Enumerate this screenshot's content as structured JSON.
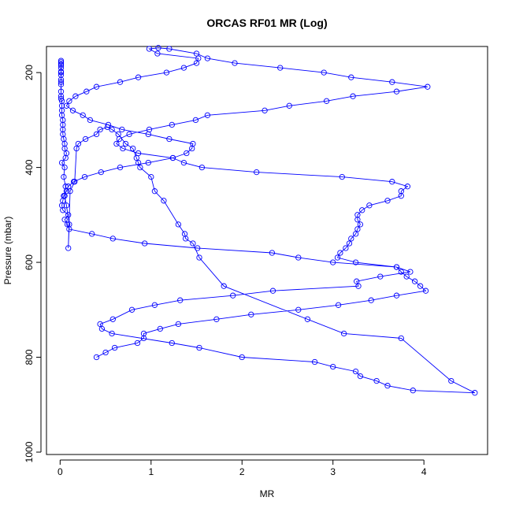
{
  "chart_data": {
    "type": "line",
    "title": "ORCAS RF01 MR (Log)",
    "xlabel": "MR",
    "ylabel": "Pressure (mbar)",
    "xlim": [
      -0.15,
      4.7
    ],
    "ylim": [
      1005,
      145
    ],
    "y_reversed": true,
    "grid": false,
    "legend": "none",
    "xticks": [
      0,
      1,
      2,
      3,
      4
    ],
    "xtick_labels": [
      "0",
      "1",
      "2",
      "3",
      "4"
    ],
    "yticks": [
      200,
      400,
      600,
      800,
      1000
    ],
    "ytick_labels": [
      "200",
      "400",
      "600",
      "800",
      "1000"
    ],
    "color": "#0000ff",
    "series": [
      {
        "marker": "circle-open",
        "x": [
          0.01,
          0.01,
          0.01,
          0.01,
          0.01,
          0.01,
          0.01,
          0.01,
          0.01,
          0.01,
          0.01,
          0.01,
          0.01,
          0.01,
          0.02,
          0.02,
          0.02,
          0.02,
          0.03,
          0.03,
          0.03,
          0.03,
          0.04,
          0.05,
          0.05,
          0.07,
          0.06,
          0.02,
          0.05,
          0.04,
          0.06,
          0.05,
          0.07,
          0.1,
          0.09,
          0.11,
          0.16,
          0.18,
          0.2,
          0.28,
          0.4,
          0.44,
          0.52,
          0.57,
          0.64,
          0.72,
          0.8,
          0.84,
          0.86,
          0.88,
          1.0,
          1.04,
          1.14,
          1.3,
          1.37,
          1.38,
          1.46,
          1.53,
          1.8,
          2.72,
          3.12,
          3.75,
          4.3,
          4.56,
          3.88,
          3.6,
          3.48,
          3.3,
          3.25,
          3.0,
          2.8,
          2.0,
          1.53,
          1.23,
          0.57,
          0.46,
          0.44,
          0.58,
          0.79,
          1.04,
          1.32,
          1.9,
          2.34,
          3.28,
          3.26,
          3.52,
          3.85,
          3.7,
          3.0,
          2.62,
          2.33,
          1.51,
          0.93,
          0.58,
          0.35,
          0.1,
          0.08,
          0.05,
          0.09,
          0.03,
          0.02,
          0.03,
          0.04,
          0.07,
          0.09,
          0.15,
          0.27,
          0.45,
          0.66,
          0.97,
          1.24,
          1.39,
          1.45,
          1.46,
          1.2,
          0.97,
          0.68,
          0.53,
          0.33,
          0.25,
          0.14,
          0.07,
          0.1,
          0.17,
          0.29,
          0.4,
          0.66,
          0.86,
          1.17,
          1.36,
          1.5,
          1.52,
          1.07,
          0.98,
          1.08,
          1.2,
          1.5,
          1.62,
          1.92,
          2.42,
          2.9,
          3.2,
          3.65,
          4.04,
          3.7,
          3.22,
          2.93,
          2.52,
          2.25,
          1.62,
          1.49,
          1.23,
          0.98,
          0.76,
          0.65,
          0.62,
          0.69,
          0.86,
          1.24,
          1.36,
          1.56,
          2.16,
          3.1,
          3.65,
          3.82,
          3.75,
          3.75,
          3.6,
          3.4,
          3.32,
          3.27,
          3.27,
          3.3,
          3.27,
          3.25,
          3.2,
          3.18,
          3.14,
          3.08,
          3.05,
          3.25,
          3.7,
          3.75,
          3.81,
          3.9,
          3.96,
          4.02,
          3.7,
          3.42,
          3.06,
          2.62,
          2.1,
          1.72,
          1.3,
          1.1,
          0.92,
          0.92,
          0.85,
          0.6,
          0.5,
          0.4
        ],
        "y": [
          175,
          178,
          182,
          185,
          190,
          198,
          200,
          205,
          215,
          220,
          225,
          240,
          250,
          255,
          260,
          270,
          280,
          290,
          300,
          310,
          320,
          330,
          340,
          350,
          360,
          370,
          380,
          390,
          400,
          420,
          440,
          460,
          480,
          520,
          570,
          450,
          430,
          360,
          350,
          340,
          330,
          320,
          315,
          320,
          330,
          350,
          360,
          380,
          390,
          400,
          420,
          450,
          470,
          520,
          540,
          550,
          560,
          590,
          650,
          720,
          750,
          760,
          850,
          875,
          870,
          860,
          850,
          840,
          830,
          820,
          810,
          800,
          780,
          770,
          750,
          740,
          730,
          720,
          700,
          690,
          680,
          670,
          660,
          650,
          640,
          630,
          620,
          610,
          600,
          590,
          580,
          570,
          560,
          550,
          540,
          530,
          520,
          510,
          500,
          490,
          480,
          470,
          460,
          450,
          440,
          430,
          420,
          410,
          400,
          390,
          380,
          370,
          360,
          350,
          340,
          330,
          320,
          310,
          300,
          290,
          280,
          270,
          260,
          250,
          240,
          230,
          220,
          210,
          200,
          190,
          180,
          170,
          160,
          150,
          148,
          150,
          160,
          170,
          180,
          190,
          200,
          210,
          220,
          230,
          240,
          250,
          260,
          270,
          280,
          290,
          300,
          310,
          320,
          330,
          340,
          350,
          360,
          370,
          380,
          390,
          400,
          410,
          420,
          430,
          440,
          450,
          460,
          470,
          480,
          490,
          500,
          510,
          520,
          530,
          540,
          550,
          560,
          570,
          580,
          590,
          600,
          610,
          620,
          630,
          640,
          650,
          660,
          670,
          680,
          690,
          700,
          710,
          720,
          730,
          740,
          750,
          760,
          770,
          780,
          790,
          800
        ]
      }
    ]
  }
}
